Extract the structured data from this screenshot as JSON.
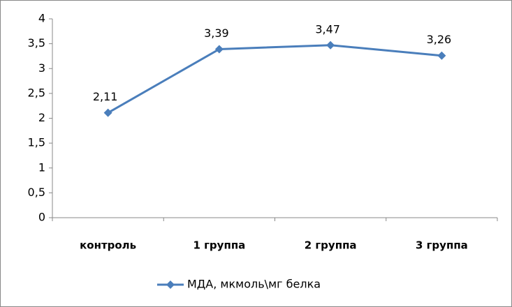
{
  "chart_data": {
    "type": "line",
    "categories": [
      "контроль",
      "1 группа",
      "2 группа",
      "3 группа"
    ],
    "series": [
      {
        "name": "МДА, мкмоль\\мг белка",
        "color": "#4a7ebb",
        "values": [
          2.11,
          3.39,
          3.47,
          3.26
        ],
        "value_labels": [
          "2,11",
          "3,39",
          "3,47",
          "3,26"
        ]
      }
    ],
    "ylim": [
      0,
      4
    ],
    "yticks": [
      0,
      {
        "value": 0.5,
        "label": "0,5"
      },
      1,
      {
        "value": 1.5,
        "label": "1,5"
      },
      2,
      {
        "value": 2.5,
        "label": "2,5"
      },
      3,
      {
        "value": 3.5,
        "label": "3,5"
      },
      4
    ],
    "grid": false,
    "legend": "bottom"
  }
}
